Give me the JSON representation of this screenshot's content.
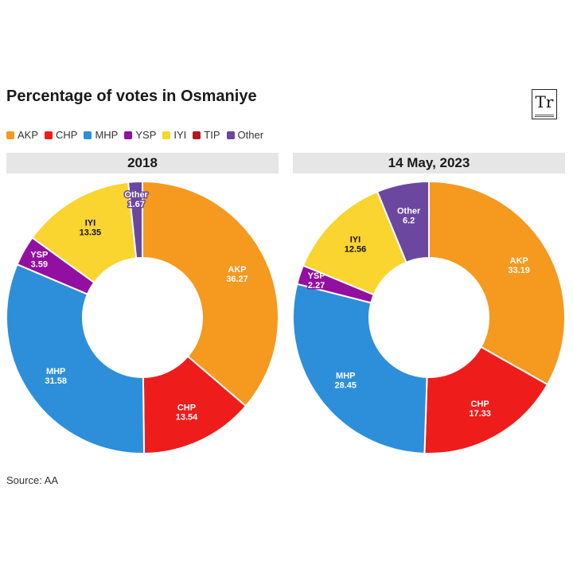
{
  "title": "Percentage of votes in Osmaniye",
  "logo": {
    "text": "Tr"
  },
  "source": "Source: AA",
  "legend": [
    {
      "label": "AKP",
      "color": "#F5991F"
    },
    {
      "label": "CHP",
      "color": "#EF1C1C"
    },
    {
      "label": "MHP",
      "color": "#2D8FDA"
    },
    {
      "label": "YSP",
      "color": "#920FA1"
    },
    {
      "label": "IYI",
      "color": "#FAD42F"
    },
    {
      "label": "TIP",
      "color": "#B1181D"
    },
    {
      "label": "Other",
      "color": "#6B47A0"
    }
  ],
  "chart_data": [
    {
      "type": "pie",
      "variant": "donut",
      "title": "2018",
      "slices": [
        {
          "label": "AKP",
          "value": 36.27,
          "color": "#F5991F",
          "label_color": "#ffffff"
        },
        {
          "label": "CHP",
          "value": 13.54,
          "color": "#EF1C1C",
          "label_color": "#ffffff"
        },
        {
          "label": "MHP",
          "value": 31.58,
          "color": "#2D8FDA",
          "label_color": "#ffffff"
        },
        {
          "label": "YSP",
          "value": 3.59,
          "color": "#920FA1",
          "label_color": "#ffffff"
        },
        {
          "label": "IYI",
          "value": 13.35,
          "color": "#FAD42F",
          "label_color": "#111111"
        },
        {
          "label": "Other",
          "value": 1.67,
          "color": "#6B47A0",
          "label_color": "#ffffff"
        }
      ]
    },
    {
      "type": "pie",
      "variant": "donut",
      "title": "14 May, 2023",
      "slices": [
        {
          "label": "AKP",
          "value": 33.19,
          "color": "#F5991F",
          "label_color": "#ffffff"
        },
        {
          "label": "CHP",
          "value": 17.33,
          "color": "#EF1C1C",
          "label_color": "#ffffff"
        },
        {
          "label": "MHP",
          "value": 28.45,
          "color": "#2D8FDA",
          "label_color": "#ffffff"
        },
        {
          "label": "YSP",
          "value": 2.27,
          "color": "#920FA1",
          "label_color": "#ffffff"
        },
        {
          "label": "IYI",
          "value": 12.56,
          "color": "#FAD42F",
          "label_color": "#111111"
        },
        {
          "label": "Other",
          "value": 6.2,
          "color": "#6B47A0",
          "label_color": "#ffffff"
        }
      ]
    }
  ]
}
